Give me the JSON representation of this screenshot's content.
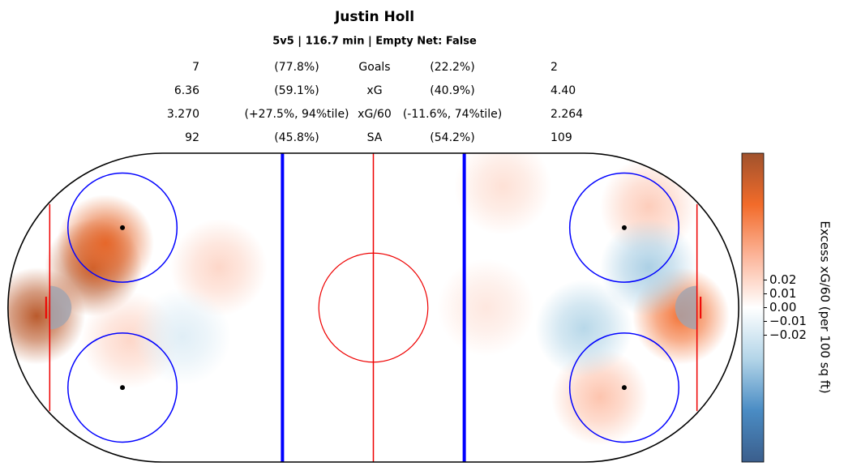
{
  "chart_data": {
    "type": "heatmap",
    "title": "Justin Holl",
    "subtitle": "5v5 | 116.7 min | Empty Net: False",
    "stats": [
      {
        "left": "7",
        "left_pct": "(77.8%)",
        "label": "Goals",
        "right_pct": "(22.2%)",
        "right": "2"
      },
      {
        "left": "6.36",
        "left_pct": "(59.1%)",
        "label": "xG",
        "right_pct": "(40.9%)",
        "right": "4.40"
      },
      {
        "left": "3.270",
        "left_pct": "(+27.5%, 94%tile)",
        "label": "xG/60",
        "right_pct": "(-11.6%, 74%tile)",
        "right": "2.264"
      },
      {
        "left": "92",
        "left_pct": "(45.8%)",
        "label": "SA",
        "right_pct": "(54.2%)",
        "right": "109"
      }
    ],
    "colorbar": {
      "label": "Excess xG/60 (per 100 sq ft)",
      "zlim": [
        -0.112,
        0.112
      ],
      "zticks": [
        0.02,
        0.01,
        {
          "value": 0,
          "label": "0.00"
        },
        {
          "value": -0.01,
          "label": "−0.01"
        },
        {
          "value": -0.02,
          "label": "−0.02"
        }
      ],
      "colors": [
        "#3b5e8c",
        "#4a8cc4",
        "#b3d5e8",
        "#ffffff",
        "#fcb59a",
        "#f26b2a",
        "#a0522d"
      ]
    },
    "hotspots": [
      {
        "x": -77,
        "y": 11,
        "value": 0.1
      },
      {
        "x": -92.6,
        "y": -2.3,
        "value": 0.1
      },
      {
        "x": -73.7,
        "y": 17.7,
        "value": 0.08
      },
      {
        "x": -42.5,
        "y": 11,
        "value": 0.02
      },
      {
        "x": -67,
        "y": -9,
        "value": 0.02
      },
      {
        "x": -52.5,
        "y": -8,
        "value": -0.015
      },
      {
        "x": 84.6,
        "y": -2.3,
        "value": 0.07
      },
      {
        "x": 75.7,
        "y": 27.8,
        "value": 0.025
      },
      {
        "x": 62.3,
        "y": -24.6,
        "value": 0.03
      },
      {
        "x": 75.7,
        "y": 11,
        "value": -0.04
      },
      {
        "x": 57.9,
        "y": -5.7,
        "value": -0.035
      },
      {
        "x": 35.6,
        "y": 33.3,
        "value": 0.015
      },
      {
        "x": 31,
        "y": 0,
        "value": 0.012
      }
    ]
  }
}
